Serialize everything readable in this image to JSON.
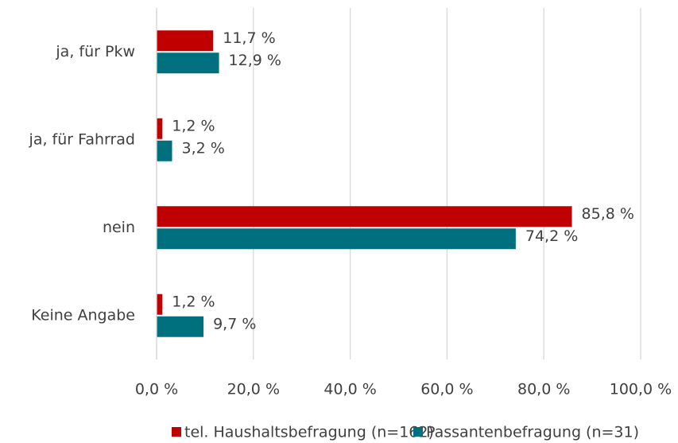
{
  "chart_data": {
    "type": "bar",
    "orientation": "horizontal",
    "categories": [
      "ja, für Pkw",
      "ja, für Fahrrad",
      "nein",
      "Keine Angabe"
    ],
    "series": [
      {
        "name": "tel. Haushaltsbefragung (n=162)",
        "color": "#c00000",
        "values": [
          11.7,
          1.2,
          85.8,
          1.2
        ],
        "value_labels": [
          "11,7 %",
          "1,2 %",
          "85,8 %",
          "1,2 %"
        ]
      },
      {
        "name": "Passantenbefragung (n=31)",
        "color": "#00707f",
        "values": [
          12.9,
          3.2,
          74.2,
          9.7
        ],
        "value_labels": [
          "12,9 %",
          "3,2 %",
          "74,2 %",
          "9,7 %"
        ]
      }
    ],
    "xlim": [
      0,
      100
    ],
    "xticks": [
      {
        "value": 0,
        "label": "0,0 %"
      },
      {
        "value": 20,
        "label": "20,0 %"
      },
      {
        "value": 40,
        "label": "40,0 %"
      },
      {
        "value": 60,
        "label": "60,0 %"
      },
      {
        "value": 80,
        "label": "80,0 %"
      },
      {
        "value": 100,
        "label": "100,0 %"
      }
    ],
    "grid": true,
    "legend": "bottom"
  }
}
